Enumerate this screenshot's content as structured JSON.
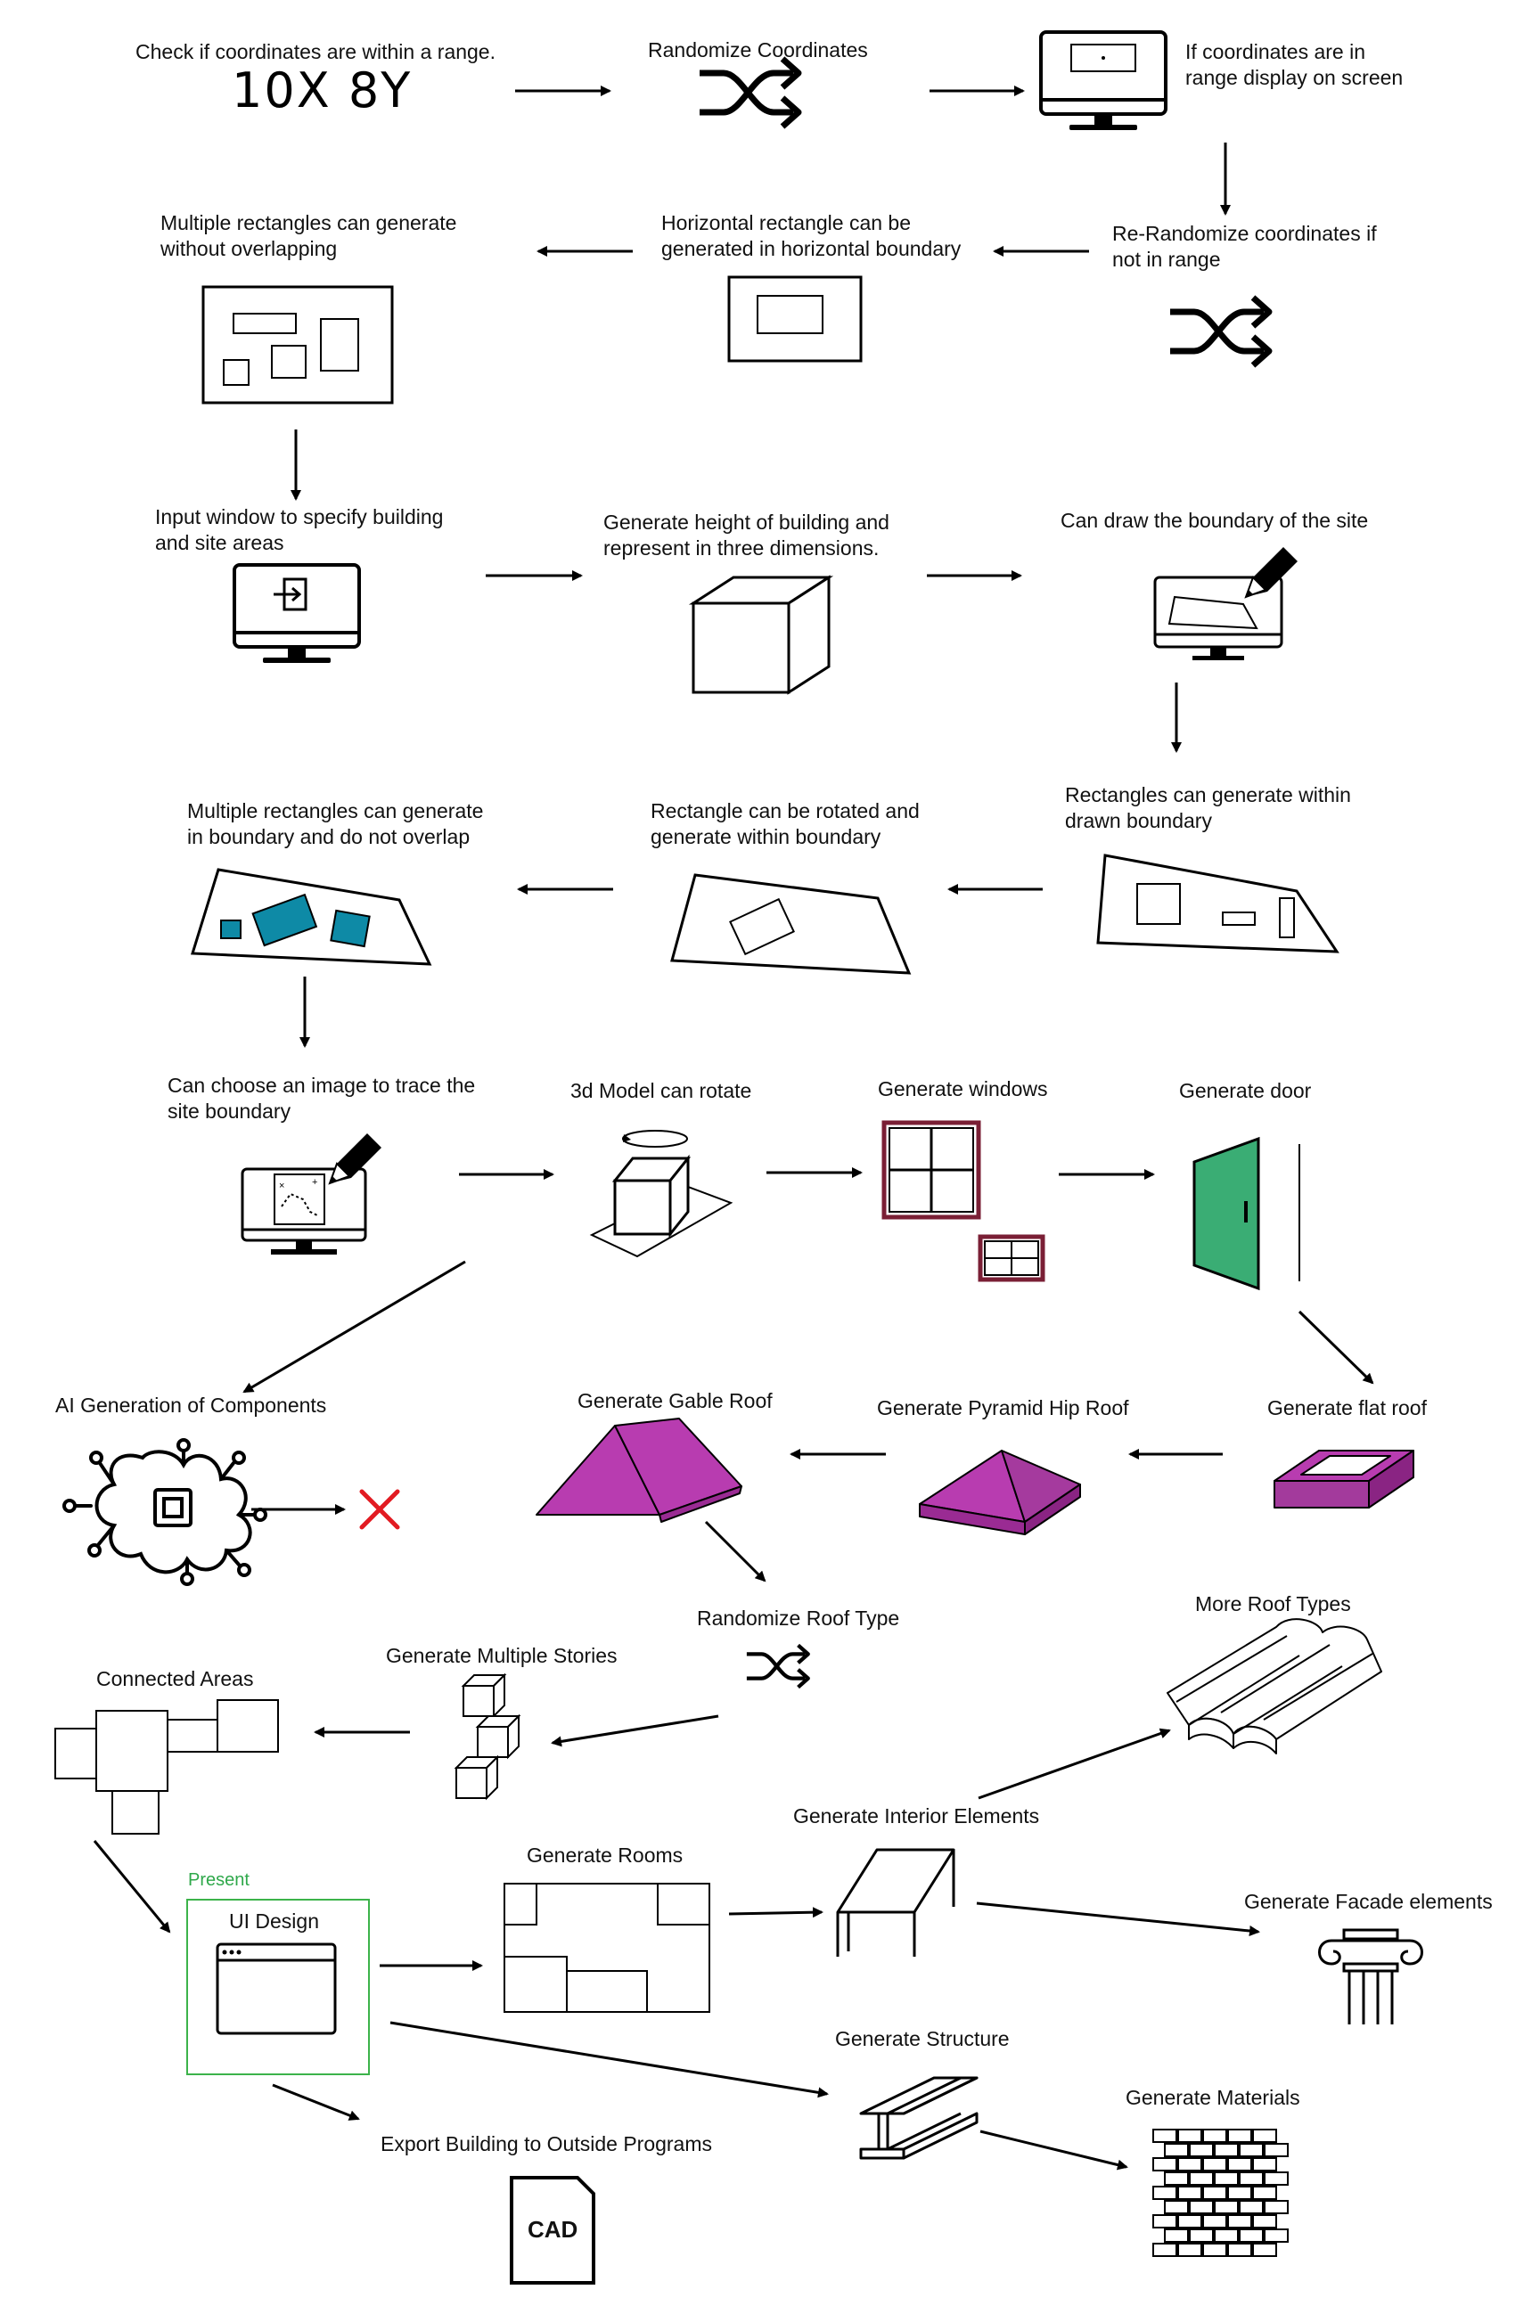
{
  "colors": {
    "teal": "#0e8aa6",
    "magenta": "#b83cb0",
    "door": "#3aad74",
    "window_frame": "#7a1f35",
    "reject": "#e21b22",
    "present": "#3cb34a",
    "ink": "#000000"
  },
  "nodes": {
    "check_range": "Check if coordinates are within a range.",
    "coord_example": "10X 8Y",
    "randomize_coords": "Randomize Coordinates",
    "display_screen": "If coordinates are in\nrange display on screen",
    "rerandomize": "Re-Randomize coordinates if\nnot in range",
    "horizontal_rect": "Horizontal rectangle can be\ngenerated in horizontal boundary",
    "multi_rect": "Multiple rectangles can generate\nwithout overlapping",
    "input_window": "Input window to specify building\nand site areas",
    "height_3d": "Generate height of building and\nrepresent in three dimensions.",
    "draw_boundary": "Can draw the boundary of the site",
    "rect_drawn": "Rectangles can generate within\ndrawn boundary",
    "rect_rotated": "Rectangle can be rotated and\ngenerate within boundary",
    "multi_rect_boundary": "Multiple rectangles can generate\nin boundary and do not overlap",
    "trace_image": "Can choose an image to trace the\nsite boundary",
    "model_rotate": "3d Model can rotate",
    "gen_windows": "Generate windows",
    "gen_door": "Generate door",
    "ai_gen": "AI Generation of Components",
    "gable_roof": "Generate Gable Roof",
    "pyramid_roof": "Generate Pyramid Hip Roof",
    "flat_roof": "Generate flat roof",
    "randomize_roof": "Randomize Roof Type",
    "more_roof": "More Roof Types",
    "multi_stories": "Generate Multiple Stories",
    "connected_areas": "Connected Areas",
    "interior": "Generate Interior Elements",
    "present": "Present",
    "ui_design": "UI Design",
    "rooms": "Generate Rooms",
    "facade": "Generate Facade elements",
    "structure": "Generate Structure",
    "materials": "Generate Materials",
    "export": "Export Building to Outside Programs",
    "cad_icon": "CAD"
  },
  "icons": [
    "shuffle-icon",
    "monitor-icon",
    "login-icon",
    "cube-icon",
    "pencil-icon",
    "window-icon",
    "door-icon",
    "ai-chip-icon",
    "cross-icon",
    "gable-roof-icon",
    "hip-roof-icon",
    "flat-roof-icon",
    "roof-tile-icon",
    "stacked-cubes-icon",
    "table-icon",
    "column-icon",
    "steel-beam-icon",
    "brick-wall-icon",
    "cad-file-icon",
    "browser-window-icon"
  ]
}
